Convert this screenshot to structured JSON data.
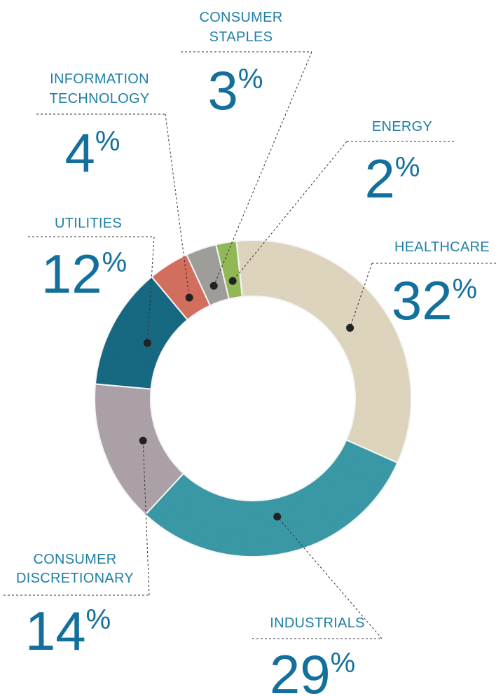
{
  "chart_data": {
    "type": "pie",
    "variant": "donut",
    "slices": [
      {
        "label": "HEALTHCARE",
        "value": 32,
        "display": "32",
        "color": "#e6dcc4"
      },
      {
        "label": "INDUSTRIALS",
        "value": 29,
        "display": "29",
        "color": "#3c9eac"
      },
      {
        "label": "CONSUMER DISCRETIONARY",
        "value": 14,
        "display": "14",
        "color": "#b2a7ae"
      },
      {
        "label": "UTILITIES",
        "value": 12,
        "display": "12",
        "color": "#156d86"
      },
      {
        "label": "INFORMATION TECHNOLOGY",
        "value": 4,
        "display": "4",
        "color": "#db7362"
      },
      {
        "label": "CONSUMER STAPLES",
        "value": 3,
        "display": "3",
        "color": "#a5a39f"
      },
      {
        "label": "ENERGY",
        "value": 2,
        "display": "2",
        "color": "#97bf5a"
      }
    ],
    "percent_symbol": "%",
    "legend": "none"
  },
  "colors": {
    "label_text": "#1f7fa6",
    "percent_text": "#136f9c",
    "leader_line": "#333333"
  }
}
